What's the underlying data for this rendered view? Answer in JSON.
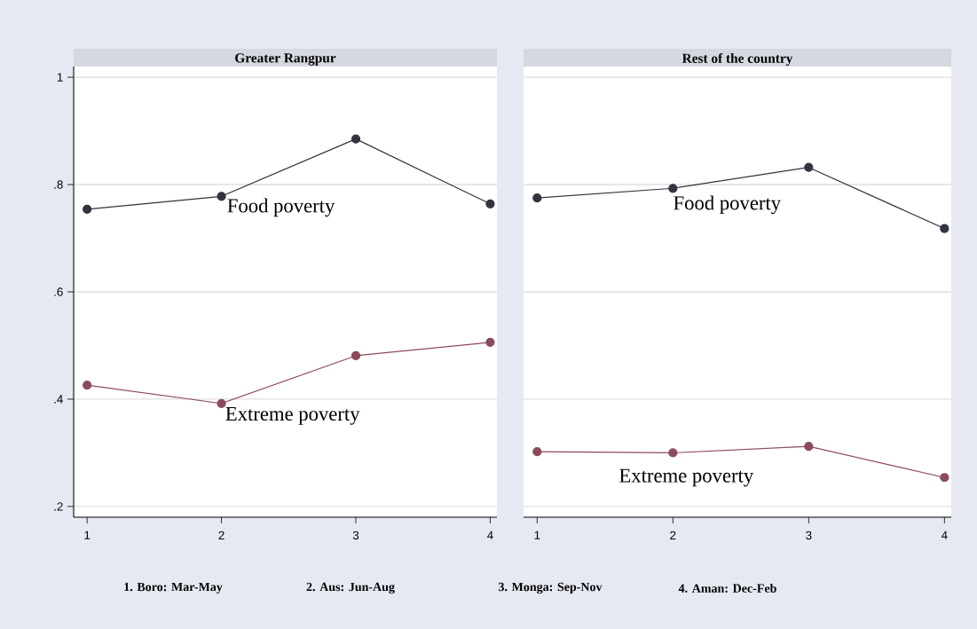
{
  "chart_data": [
    {
      "type": "line",
      "title": "Greater Rangpur",
      "x": [
        1,
        2,
        3,
        4
      ],
      "xlim": [
        0.9,
        4.05
      ],
      "xticks": [
        1,
        2,
        3,
        4
      ],
      "ylim": [
        0.18,
        1.02
      ],
      "yticks": [
        {
          "value": 0.2,
          "label": ".2"
        },
        {
          "value": 0.4,
          "label": ".4"
        },
        {
          "value": 0.6,
          "label": ".6"
        },
        {
          "value": 0.8,
          "label": ".8"
        },
        1
      ],
      "grid": "y",
      "marker": "circle",
      "line_style": "solid",
      "series": [
        {
          "name": "Food poverty",
          "color": "#33333f",
          "values": [
            0.754,
            0.778,
            0.885,
            0.764
          ]
        },
        {
          "name": "Extreme poverty",
          "color": "#8c4a5a",
          "values": [
            0.426,
            0.392,
            0.481,
            0.506
          ]
        }
      ],
      "annotations": [
        "1. Boro: Mar-May",
        "2. Aus: Jun-Aug",
        "3. Monga: Sep-Nov",
        "4. Aman: Dec-Feb"
      ]
    },
    {
      "type": "line",
      "title": "Rest of the country",
      "x": [
        1,
        2,
        3,
        4
      ],
      "xlim": [
        0.9,
        4.05
      ],
      "xticks": [
        1,
        2,
        3,
        4
      ],
      "ylim": [
        0.18,
        1.02
      ],
      "yticks": [
        {
          "value": 0.2,
          "label": null
        },
        {
          "value": 0.4,
          "label": null
        },
        {
          "value": 0.6,
          "label": null
        },
        {
          "value": 0.8,
          "label": null
        },
        {
          "value": 1,
          "label": null
        }
      ],
      "tick_labels": "x",
      "grid": "y",
      "marker": "circle",
      "line_style": "solid",
      "series": [
        {
          "name": "Food poverty",
          "color": "#33333f",
          "values": [
            0.775,
            0.793,
            0.832,
            0.718
          ]
        },
        {
          "name": "Extreme poverty",
          "color": "#8c4a5a",
          "values": [
            0.302,
            0.3,
            0.312,
            0.254
          ]
        }
      ]
    }
  ]
}
